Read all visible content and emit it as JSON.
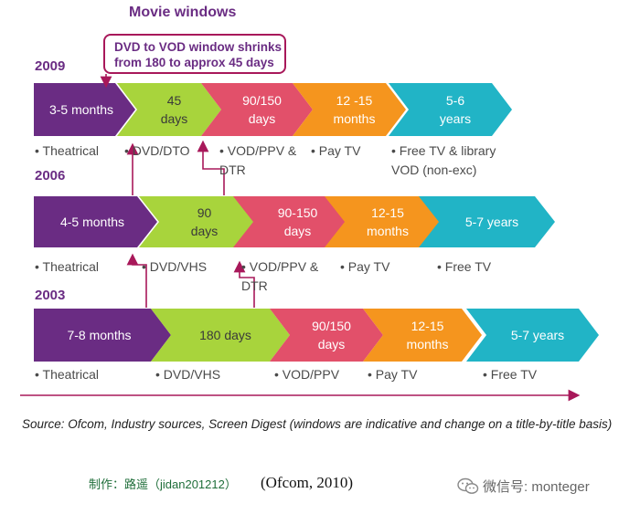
{
  "title": "Movie windows",
  "callout": {
    "line1": "DVD to VOD window shrinks",
    "line2": "from 180 to approx 45 days"
  },
  "colors": {
    "purple": "#6a2c83",
    "green": "#a8d43c",
    "pink": "#e2506a",
    "orange": "#f5951e",
    "teal": "#21b4c6",
    "connector": "#a8185a"
  },
  "rows": [
    {
      "year": "2009",
      "chevrons": [
        {
          "lines": [
            "3-5 months"
          ]
        },
        {
          "lines": [
            "45",
            "days"
          ]
        },
        {
          "lines": [
            "90/150",
            "days"
          ]
        },
        {
          "lines": [
            "12 -15",
            "months"
          ]
        },
        {
          "lines": [
            "5-6",
            "years"
          ]
        }
      ],
      "labels": [
        {
          "lines": [
            "• Theatrical"
          ]
        },
        {
          "lines": [
            "• DVD/DTO"
          ]
        },
        {
          "lines": [
            "• VOD/PPV &",
            "DTR"
          ]
        },
        {
          "lines": [
            "• Pay TV"
          ]
        },
        {
          "lines": [
            "• Free TV & library",
            "VOD (non-exc)"
          ]
        }
      ]
    },
    {
      "year": "2006",
      "chevrons": [
        {
          "lines": [
            "4-5 months"
          ]
        },
        {
          "lines": [
            "90",
            "days"
          ]
        },
        {
          "lines": [
            "90-150",
            "days"
          ]
        },
        {
          "lines": [
            "12-15",
            "months"
          ]
        },
        {
          "lines": [
            "5-7 years"
          ]
        }
      ],
      "labels": [
        {
          "lines": [
            "• Theatrical"
          ]
        },
        {
          "lines": [
            "• DVD/VHS"
          ]
        },
        {
          "lines": [
            "• VOD/PPV &",
            "DTR"
          ]
        },
        {
          "lines": [
            "• Pay TV"
          ]
        },
        {
          "lines": [
            "• Free TV"
          ]
        }
      ]
    },
    {
      "year": "2003",
      "chevrons": [
        {
          "lines": [
            "7-8 months"
          ]
        },
        {
          "lines": [
            "180 days"
          ]
        },
        {
          "lines": [
            "90/150",
            "days"
          ]
        },
        {
          "lines": [
            "12-15",
            "months"
          ]
        },
        {
          "lines": [
            "5-7 years"
          ]
        }
      ],
      "labels": [
        {
          "lines": [
            "• Theatrical"
          ]
        },
        {
          "lines": [
            "• DVD/VHS"
          ]
        },
        {
          "lines": [
            "• VOD/PPV"
          ]
        },
        {
          "lines": [
            "• Pay TV"
          ]
        },
        {
          "lines": [
            "• Free TV"
          ]
        }
      ]
    }
  ],
  "source": "Source: Ofcom, Industry sources, Screen Digest (windows are indicative and change on a title-by-title basis)",
  "footer": {
    "maker": "制作：路遥（jidan201212）",
    "citation": "(Ofcom, 2010)",
    "watermark": "微信号: monteger"
  }
}
